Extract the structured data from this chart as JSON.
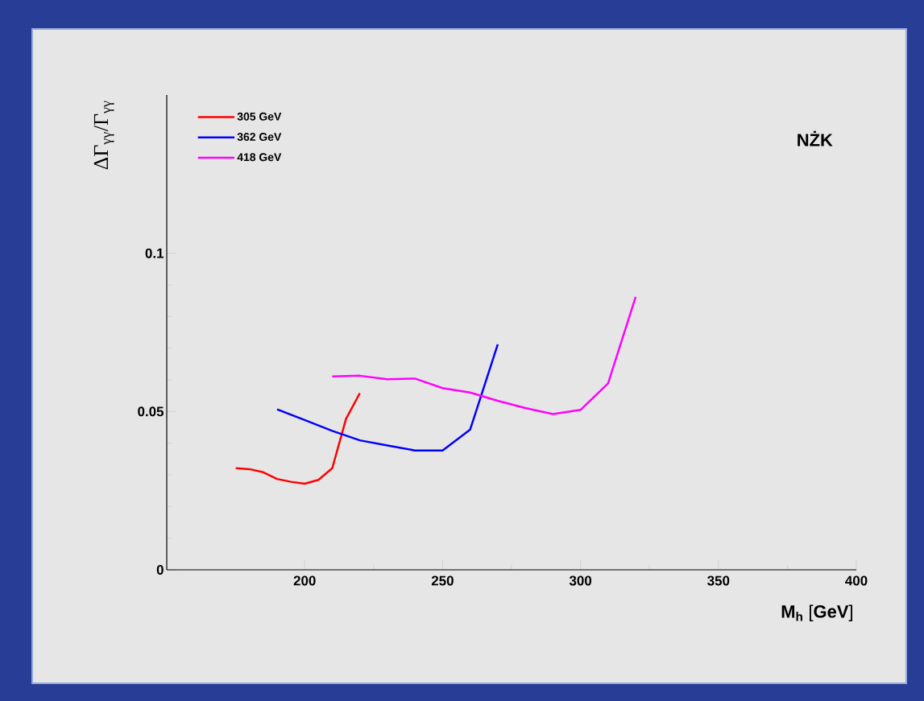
{
  "chart_data": {
    "type": "line",
    "xlabel": "**M$_{h}$**  [**GeV**]",
    "ylabel": "ΔΓ$_{γγ}$/Γ$_{γγ}$",
    "annotations": [
      "NŻK"
    ],
    "xlim": [
      150,
      400
    ],
    "ylim": [
      0,
      0.15
    ],
    "xticks": [
      200,
      250,
      300,
      350,
      400
    ],
    "yticks": [
      0,
      0.05,
      0.1
    ],
    "legend": "top left",
    "grid": false,
    "marker": "none",
    "line_style": "solid",
    "series": [
      {
        "name": "305 GeV",
        "color": "#ff0000",
        "x": [
          175,
          180,
          185,
          190,
          195,
          200,
          205,
          210,
          215,
          220
        ],
        "values": [
          0.0321,
          0.0318,
          0.0308,
          0.0287,
          0.0278,
          0.0272,
          0.0284,
          0.0321,
          0.0477,
          0.0558
        ]
      },
      {
        "name": "362 GeV",
        "color": "#0000ff",
        "x": [
          190,
          200,
          210,
          220,
          230,
          240,
          250,
          260,
          270
        ],
        "values": [
          0.0507,
          0.0473,
          0.0439,
          0.0409,
          0.0393,
          0.0377,
          0.0377,
          0.0443,
          0.0712
        ]
      },
      {
        "name": "418 GeV",
        "color": "#ff00ff",
        "x": [
          210,
          220,
          230,
          240,
          250,
          260,
          270,
          280,
          290,
          300,
          310,
          320
        ],
        "values": [
          0.0611,
          0.0613,
          0.0602,
          0.0604,
          0.0574,
          0.056,
          0.0534,
          0.0511,
          0.0492,
          0.0505,
          0.0589,
          0.0862
        ]
      }
    ]
  }
}
